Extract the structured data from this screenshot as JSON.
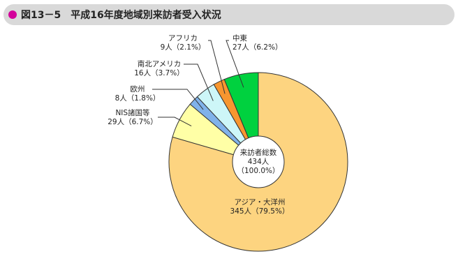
{
  "chart_data": {
    "type": "pie",
    "title": "図13－5　平成16年度地域別来訪者受入状況",
    "categories": [
      "アジア・大洋州",
      "NIS諸国等",
      "欧州",
      "南北アメリカ",
      "アフリカ",
      "中東"
    ],
    "values": [
      345,
      29,
      8,
      16,
      9,
      27
    ],
    "value_labels": [
      "345人",
      "29人",
      "8人",
      "16人",
      "9人",
      "27人"
    ],
    "percent_labels": [
      "（79.5%）",
      "（6.7%）",
      "（1.8%）",
      "（3.7%）",
      "（2.1%）",
      "（6.2%）"
    ],
    "colors": [
      "#fdd480",
      "#ffffa6",
      "#80b2ea",
      "#cdf6f8",
      "#f7962f",
      "#00d13f"
    ],
    "center_label": {
      "title": "来訪者総数",
      "value_label": "434人",
      "percent_label": "（100.0%）"
    }
  }
}
